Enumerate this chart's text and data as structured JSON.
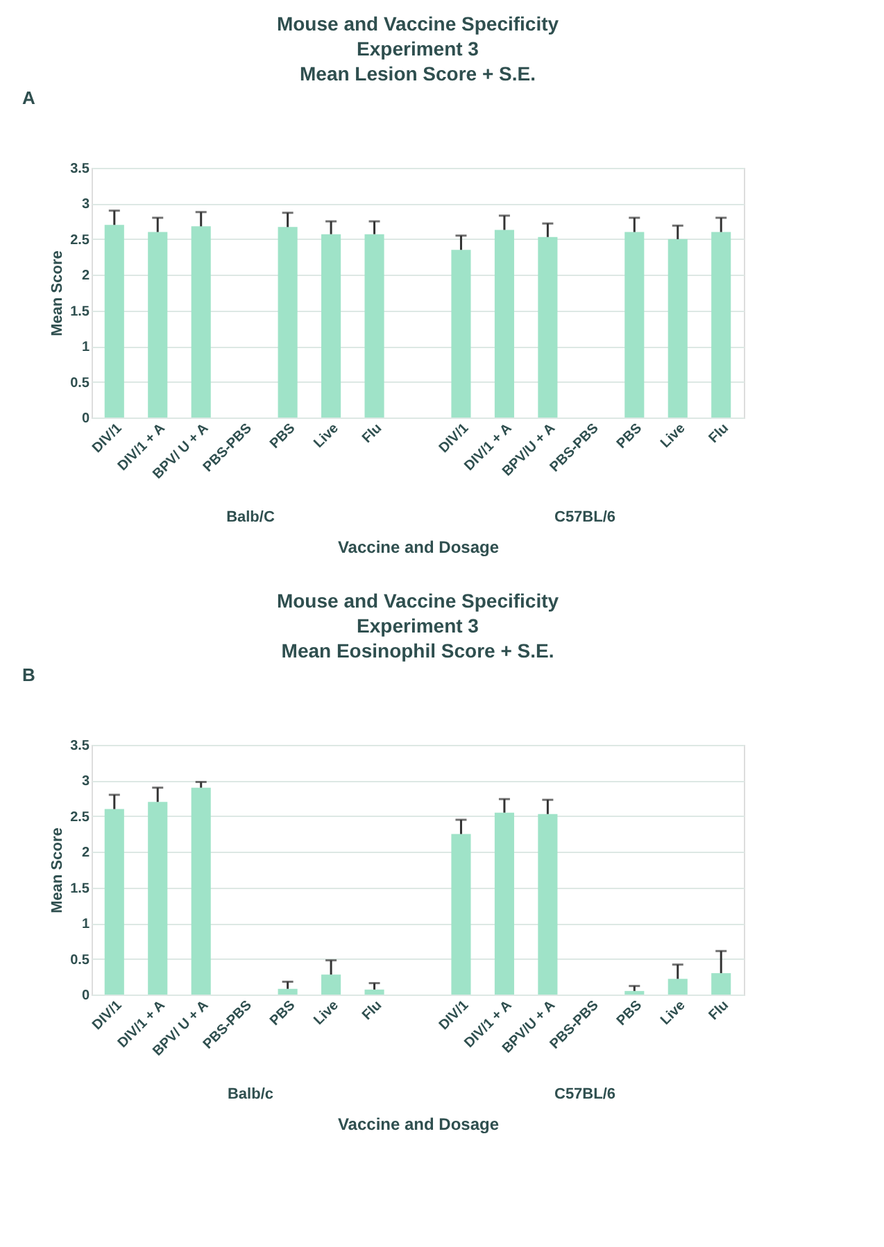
{
  "chart_data": [
    {
      "type": "bar",
      "title": "Mouse and Vaccine Specificity\nExperiment 3\nMean Lesion Score + S.E.",
      "xlabel": "Vaccine and Dosage",
      "ylabel": "Mean Score",
      "categories": [
        "DIV/1",
        "DIV/1 + A",
        "BPV/ U + A",
        "PBS-PBS",
        "PBS",
        "Live",
        "Flu",
        null,
        "DIV/1",
        "DIV/1 + A",
        "BPV/U + A",
        "PBS-PBS",
        "PBS",
        "Live",
        "Flu"
      ],
      "values": [
        2.7,
        2.6,
        2.68,
        0,
        2.67,
        2.57,
        2.57,
        null,
        2.35,
        2.63,
        2.53,
        0,
        2.6,
        2.5,
        2.6
      ],
      "errors": [
        [
          2.7,
          2.9
        ],
        [
          2.6,
          2.8
        ],
        [
          2.68,
          2.88
        ],
        null,
        [
          2.67,
          2.87
        ],
        [
          2.57,
          2.75
        ],
        [
          2.57,
          2.75
        ],
        null,
        [
          2.35,
          2.55
        ],
        [
          2.63,
          2.83
        ],
        [
          2.53,
          2.72
        ],
        null,
        [
          2.6,
          2.8
        ],
        [
          2.5,
          2.69
        ],
        [
          2.6,
          2.8
        ]
      ],
      "color": "#9fe3c8",
      "ylim": [
        0,
        3.5
      ],
      "yticks": [
        0,
        0.5,
        1,
        1.5,
        2,
        2.5,
        3,
        3.5
      ],
      "grid": "y",
      "annotations": [
        "A",
        "Balb/C",
        "C57BL/6"
      ]
    },
    {
      "type": "bar",
      "title": "Mouse and Vaccine Specificity\nExperiment 3\nMean Eosinophil Score + S.E.",
      "xlabel": "Vaccine and Dosage",
      "ylabel": "Mean Score",
      "categories": [
        "DIV/1",
        "DIV/1 + A",
        "BPV/ U + A",
        "PBS-PBS",
        "PBS",
        "Live",
        "Flu",
        null,
        "DIV/1",
        "DIV/1 + A",
        "BPV/U + A",
        "PBS-PBS",
        "PBS",
        "Live",
        "Flu"
      ],
      "values": [
        2.6,
        2.7,
        2.9,
        0,
        0.08,
        0.28,
        0.07,
        null,
        2.25,
        2.55,
        2.53,
        0,
        0.05,
        0.22,
        0.3
      ],
      "errors": [
        [
          2.6,
          2.8
        ],
        [
          2.7,
          2.9
        ],
        [
          2.9,
          2.98
        ],
        null,
        [
          0.08,
          0.18
        ],
        [
          0.28,
          0.48
        ],
        [
          0.07,
          0.16
        ],
        null,
        [
          2.25,
          2.45
        ],
        [
          2.55,
          2.74
        ],
        [
          2.53,
          2.73
        ],
        null,
        [
          0.05,
          0.12
        ],
        [
          0.22,
          0.42
        ],
        [
          0.3,
          0.61
        ]
      ],
      "color": "#9fe3c8",
      "ylim": [
        0,
        3.5
      ],
      "yticks": [
        0,
        0.5,
        1,
        1.5,
        2,
        2.5,
        3,
        3.5
      ],
      "grid": "y",
      "annotations": [
        "B",
        "Balb/c",
        "C57BL/6"
      ]
    }
  ]
}
